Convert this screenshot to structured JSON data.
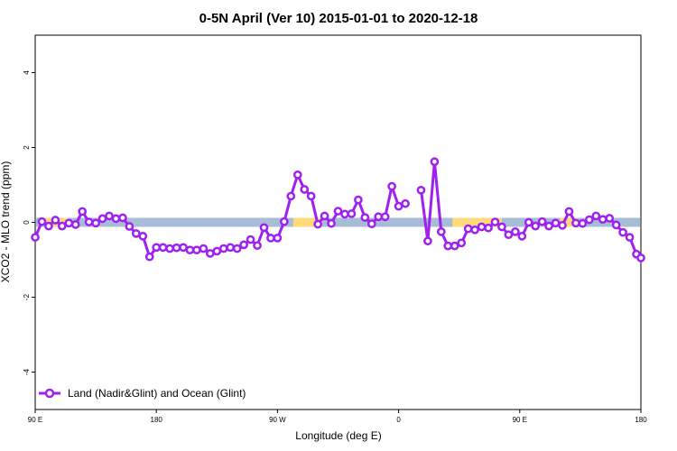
{
  "colors": {
    "series": "#a020f0",
    "marker_fill": "#ffffff",
    "band_land": "#a7bcd6",
    "band_ocean": "#ffd97a",
    "axis": "#000000"
  },
  "chart_data": {
    "type": "line",
    "title": "0-5N April (Ver 10)   2015-01-01 to 2020-12-18",
    "xlabel": "Longitude (deg E)",
    "ylabel": "XCO2 - MLO trend (ppm)",
    "xlim": [
      -90,
      180
    ],
    "ylim": [
      -5,
      5
    ],
    "x_ticks": [
      {
        "value": -90,
        "label": "90 E"
      },
      {
        "value": -36,
        "label": "180"
      },
      {
        "value": 18,
        "label": "90 W"
      },
      {
        "value": 72,
        "label": "0"
      },
      {
        "value": 126,
        "label": "90 E"
      },
      {
        "value": 180,
        "label": "180"
      }
    ],
    "y_ticks": [
      -4,
      -2,
      0,
      2,
      4
    ],
    "legend": {
      "position": "bottom-left",
      "label": "Land (Nadir&Glint) and Ocean (Glint)"
    },
    "surface_band": {
      "y": 0,
      "default": "land",
      "ocean_ranges": [
        [
          -86,
          -75
        ],
        [
          25,
          38
        ],
        [
          96,
          118
        ],
        [
          144,
          152
        ]
      ]
    },
    "series": [
      {
        "name": "Land (Nadir&Glint) and Ocean (Glint)",
        "segments": [
          {
            "x": [
              -90,
              -87,
              -84,
              -81,
              -78,
              -75,
              -72,
              -69,
              -66,
              -63,
              -60,
              -57,
              -54,
              -51,
              -48,
              -45,
              -42,
              -39,
              -36,
              -33,
              -30,
              -27,
              -24,
              -21,
              -18,
              -15,
              -12,
              -9,
              -6,
              -3,
              0,
              3,
              6,
              9,
              12,
              15,
              18,
              21,
              24,
              27,
              30,
              33,
              36,
              39,
              42,
              45,
              48,
              51,
              54,
              57,
              60,
              63,
              66,
              69,
              72,
              75
            ],
            "y": [
              -0.4,
              0.02,
              -0.1,
              0.06,
              -0.1,
              -0.02,
              -0.06,
              0.29,
              0.01,
              -0.02,
              0.1,
              0.17,
              0.1,
              0.12,
              -0.11,
              -0.3,
              -0.37,
              -0.92,
              -0.67,
              -0.67,
              -0.7,
              -0.68,
              -0.67,
              -0.74,
              -0.74,
              -0.7,
              -0.83,
              -0.77,
              -0.7,
              -0.67,
              -0.7,
              -0.6,
              -0.46,
              -0.62,
              -0.14,
              -0.42,
              -0.42,
              0.02,
              0.7,
              1.27,
              0.88,
              0.7,
              -0.05,
              0.17,
              -0.03,
              0.3,
              0.22,
              0.23,
              0.6,
              0.13,
              -0.04,
              0.15,
              0.15,
              0.96,
              0.43,
              0.5
            ]
          },
          {
            "x": [
              82,
              85,
              88,
              91,
              94,
              97,
              100,
              103,
              106,
              109,
              112,
              115,
              118,
              121,
              124,
              127,
              130,
              133,
              136,
              139,
              142,
              145,
              148,
              151,
              154,
              157,
              160,
              163,
              166,
              169,
              172,
              175,
              178,
              180
            ],
            "y": [
              0.86,
              -0.5,
              1.62,
              -0.25,
              -0.63,
              -0.63,
              -0.55,
              -0.17,
              -0.2,
              -0.12,
              -0.15,
              0.01,
              -0.12,
              -0.33,
              -0.25,
              -0.37,
              0.0,
              -0.1,
              0.02,
              -0.1,
              -0.02,
              -0.08,
              0.29,
              -0.02,
              -0.03,
              0.07,
              0.17,
              0.08,
              0.11,
              -0.07,
              -0.27,
              -0.4,
              -0.85,
              -0.95
            ]
          }
        ]
      }
    ]
  }
}
